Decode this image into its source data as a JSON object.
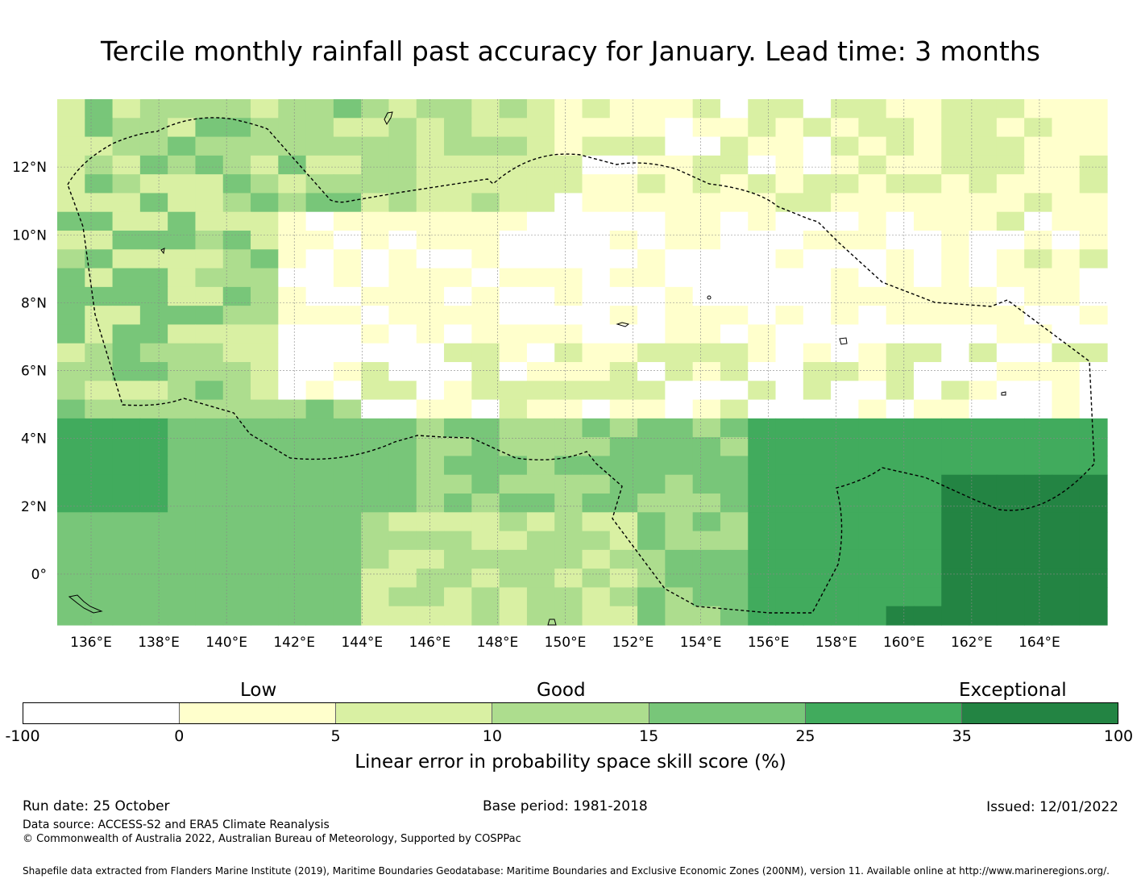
{
  "title": "Tercile monthly rainfall past accuracy for January. Lead time: 3 months",
  "map": {
    "lon_range": [
      135,
      166
    ],
    "lat_range": [
      -1.5,
      14
    ],
    "lon_ticks": [
      "136°E",
      "138°E",
      "140°E",
      "142°E",
      "144°E",
      "146°E",
      "148°E",
      "150°E",
      "152°E",
      "154°E",
      "156°E",
      "158°E",
      "160°E",
      "162°E",
      "164°E"
    ],
    "lat_ticks": [
      "12°N",
      "10°N",
      "8°N",
      "6°N",
      "4°N",
      "2°N",
      "0°"
    ],
    "grid": true,
    "boundary": "EEZ dashed line"
  },
  "colorbar": {
    "category_labels": [
      "Low",
      "Good",
      "Exceptional"
    ],
    "tick_labels": [
      "-100",
      "0",
      "5",
      "10",
      "15",
      "25",
      "35",
      "100"
    ],
    "colors": [
      "#ffffff",
      "#ffffcc",
      "#d9f0a3",
      "#addd8e",
      "#78c679",
      "#41ab5d",
      "#238443"
    ],
    "title": "Linear error in probability space skill score (%)"
  },
  "footer": {
    "run_date": "Run date: 25 October",
    "base_period": "Base period: 1981-2018",
    "issued": "Issued: 12/01/2022",
    "data_source": "Data source: ACCESS-S2 and ERA5 Climate Reanalysis",
    "copyright": "© Commonwealth of Australia 2022, Australian Bureau of Meteorology, Supported by COSPPac",
    "shapefile": "Shapefile data extracted from Flanders Marine Institute (2019), Maritime Boundaries Geodatabase: Maritime Boundaries and Exclusive Economic Zones (200NM), version 11. Available online at http://www.marineregions.org/."
  }
}
